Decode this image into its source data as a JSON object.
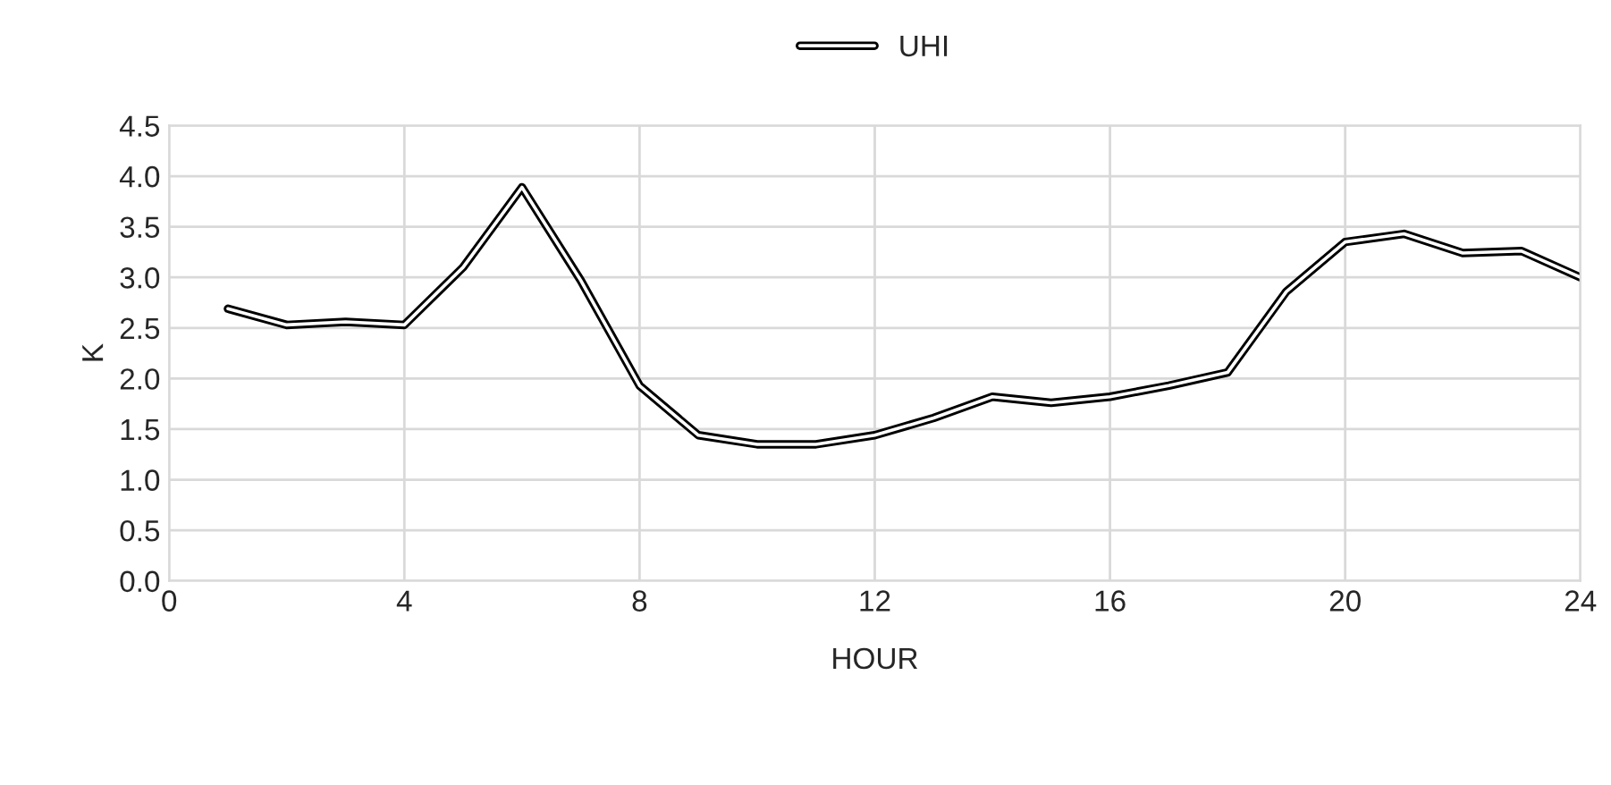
{
  "chart_data": {
    "type": "line",
    "xlabel": "HOUR",
    "ylabel": "K",
    "x": [
      1,
      2,
      3,
      4,
      5,
      6,
      7,
      8,
      9,
      10,
      11,
      12,
      13,
      14,
      15,
      16,
      17,
      18,
      19,
      20,
      21,
      22,
      23,
      24
    ],
    "series": [
      {
        "name": "UHI",
        "color": "#000000",
        "values": [
          2.69,
          2.53,
          2.56,
          2.53,
          3.1,
          3.89,
          2.97,
          1.93,
          1.44,
          1.35,
          1.35,
          1.44,
          1.61,
          1.82,
          1.76,
          1.82,
          1.93,
          2.06,
          2.86,
          3.35,
          3.43,
          3.24,
          3.26,
          3.0
        ]
      }
    ],
    "xlim": [
      0,
      24
    ],
    "xticks": [
      0,
      4,
      8,
      12,
      16,
      20,
      24
    ],
    "ylim": [
      0,
      4.5
    ],
    "yticks": [
      {
        "value": 0,
        "label": "0.0"
      },
      {
        "value": 0.5,
        "label": "0.5"
      },
      {
        "value": 1,
        "label": "1.0"
      },
      {
        "value": 1.5,
        "label": "1.5"
      },
      {
        "value": 2,
        "label": "2.0"
      },
      {
        "value": 2.5,
        "label": "2.5"
      },
      {
        "value": 3,
        "label": "3.0"
      },
      {
        "value": 3.5,
        "label": "3.5"
      },
      {
        "value": 4,
        "label": "4.0"
      },
      {
        "value": 4.5,
        "label": "4.5"
      }
    ],
    "grid": true,
    "legend": "top",
    "marker": "none",
    "line_style": "solid"
  }
}
